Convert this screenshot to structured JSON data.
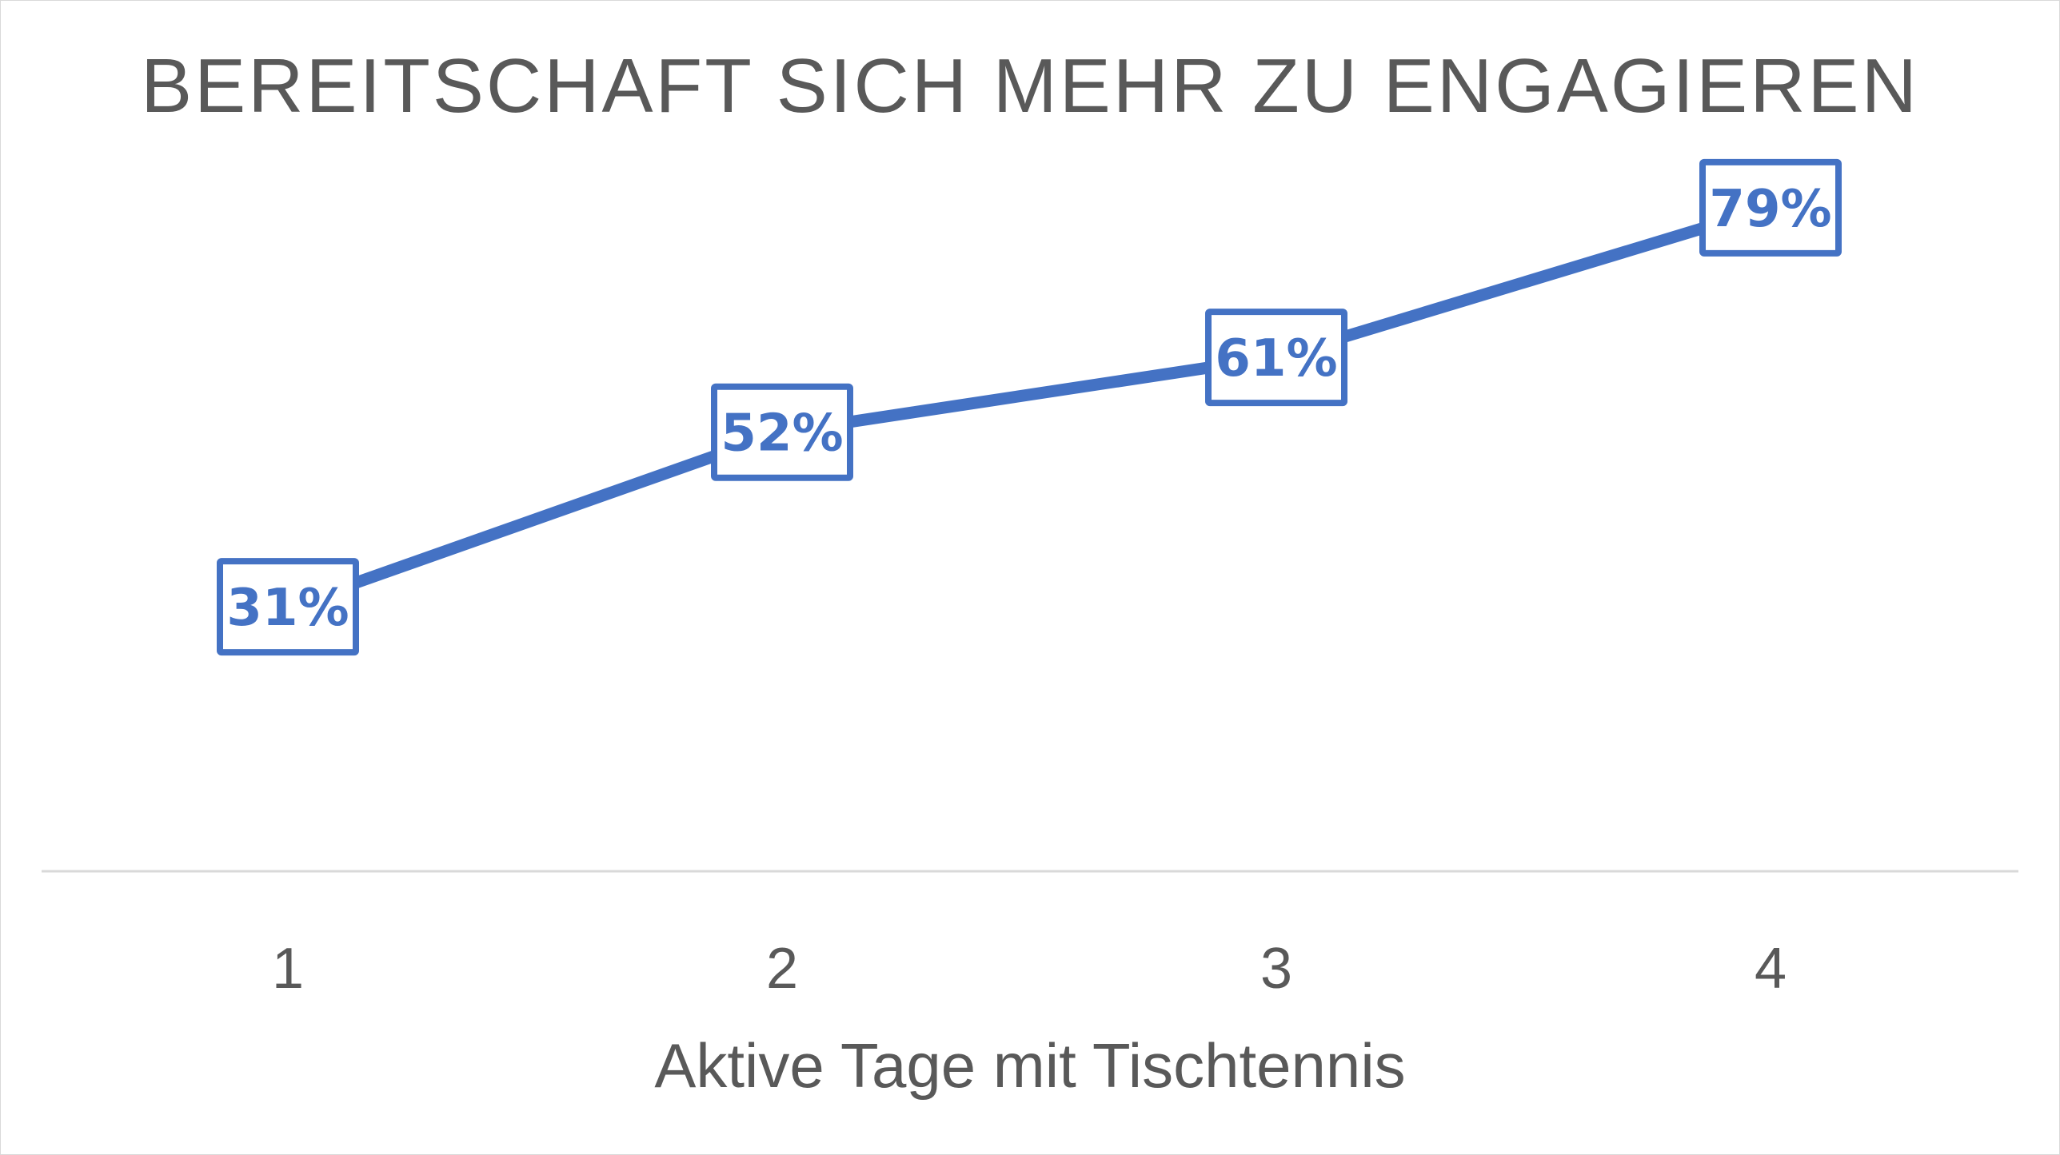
{
  "chart_data": {
    "type": "line",
    "title": "BEREITSCHAFT SICH MEHR ZU ENGAGIEREN",
    "xlabel": "Aktive Tage mit Tischtennis",
    "ylabel": "",
    "categories": [
      "1",
      "2",
      "3",
      "4"
    ],
    "series": [
      {
        "values": [
          31,
          52,
          61,
          79
        ],
        "labels": [
          "31%",
          "52%",
          "61%",
          "79%"
        ],
        "color": "#4472c4"
      }
    ],
    "ylim": [
      0,
      100
    ],
    "grid": false,
    "legend": "none",
    "axis_color": "#d9d9d9",
    "text_color": "#595959"
  }
}
